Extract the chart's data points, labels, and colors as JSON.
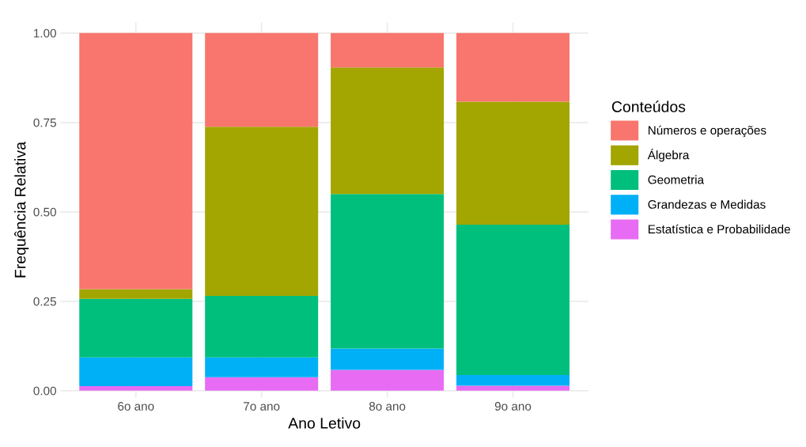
{
  "chart_data": {
    "type": "bar",
    "stacked": true,
    "xlabel": "Ano Letivo",
    "ylabel": "Frequência Relativa",
    "legend_title": "Conteúdos",
    "legend": "right",
    "categories": [
      "6o ano",
      "7o ano",
      "8o ano",
      "9o ano"
    ],
    "series": [
      {
        "name": "Estatística e Probabilidade",
        "color": "#e76bf3",
        "values": [
          0.013,
          0.038,
          0.058,
          0.014
        ]
      },
      {
        "name": "Grandezas e Medidas",
        "color": "#00b0f6",
        "values": [
          0.08,
          0.055,
          0.06,
          0.03
        ]
      },
      {
        "name": "Geometria",
        "color": "#00bf7d",
        "values": [
          0.164,
          0.172,
          0.432,
          0.42
        ]
      },
      {
        "name": "Álgebra",
        "color": "#a3a500",
        "values": [
          0.027,
          0.473,
          0.354,
          0.344
        ]
      },
      {
        "name": "Números e operações",
        "color": "#f8766d",
        "values": [
          0.716,
          0.262,
          0.096,
          0.192
        ]
      }
    ],
    "ylim": [
      -0.02,
      1.03
    ],
    "yticks": [
      {
        "value": 0,
        "label": "0.00"
      },
      {
        "value": 0.25,
        "label": "0.25"
      },
      {
        "value": 0.5,
        "label": "0.50"
      },
      {
        "value": 0.75,
        "label": "0.75"
      },
      {
        "value": 1,
        "label": "1.00"
      }
    ],
    "grid": true
  }
}
